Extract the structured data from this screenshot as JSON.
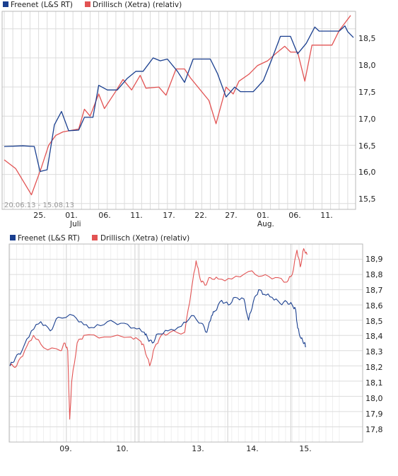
{
  "colors": {
    "series_a": "#1a3f8f",
    "series_b": "#e25353",
    "grid": "#dcdcdc",
    "frame": "#b8b8b8",
    "tick_text": "#222222",
    "range_text": "#9a9a9a"
  },
  "chart_data": [
    {
      "type": "line",
      "legend_position": "top-left",
      "legend": [
        "Freenet (L&S RT)",
        "Drillisch (Xetra) (relativ)"
      ],
      "date_range_label": "20.06.13 - 15.08.13",
      "x_ticks": [
        "25.",
        "01.",
        "06.",
        "11.",
        "17.",
        "22.",
        "27.",
        "01.",
        "06.",
        "11."
      ],
      "x_month_labels": [
        {
          "label": "Juli",
          "tick": "01."
        },
        {
          "label": "Aug.",
          "tick": "01."
        }
      ],
      "y_axis_side": "right",
      "y_ticks": [
        "15,5",
        "16,0",
        "16,5",
        "17,0",
        "17,5",
        "18,0",
        "18,5"
      ],
      "ylim": [
        15.4,
        18.8
      ],
      "grid": true,
      "series": [
        {
          "name": "Freenet (L&S RT)",
          "values": [
            [
              0,
              16.48
            ],
            [
              1.3,
              16.49
            ],
            [
              2.1,
              16.48
            ],
            [
              2.5,
              16.05
            ],
            [
              3.0,
              16.08
            ],
            [
              3.5,
              16.85
            ],
            [
              4.0,
              17.08
            ],
            [
              4.5,
              16.75
            ],
            [
              5.2,
              16.76
            ],
            [
              5.6,
              16.98
            ],
            [
              6.2,
              16.98
            ],
            [
              6.6,
              17.53
            ],
            [
              7.2,
              17.45
            ],
            [
              7.9,
              17.45
            ],
            [
              8.6,
              17.65
            ],
            [
              9.2,
              17.77
            ],
            [
              9.7,
              17.77
            ],
            [
              10.4,
              18.0
            ],
            [
              10.9,
              17.95
            ],
            [
              11.4,
              17.98
            ],
            [
              12.1,
              17.77
            ],
            [
              12.6,
              17.58
            ],
            [
              13.2,
              17.98
            ],
            [
              14.4,
              17.98
            ],
            [
              14.9,
              17.73
            ],
            [
              15.5,
              17.33
            ],
            [
              16.1,
              17.5
            ],
            [
              16.5,
              17.42
            ],
            [
              17.4,
              17.42
            ],
            [
              18.1,
              17.61
            ],
            [
              18.7,
              17.98
            ],
            [
              19.3,
              18.37
            ],
            [
              20.0,
              18.37
            ],
            [
              20.5,
              18.07
            ],
            [
              21.1,
              18.25
            ],
            [
              21.7,
              18.53
            ],
            [
              22.0,
              18.46
            ],
            [
              23.4,
              18.46
            ],
            [
              23.8,
              18.55
            ],
            [
              24.0,
              18.45
            ],
            [
              24.4,
              18.35
            ]
          ]
        },
        {
          "name": "Drillisch (Xetra) (relativ)",
          "values": [
            [
              0,
              16.25
            ],
            [
              0.8,
              16.1
            ],
            [
              1.9,
              15.65
            ],
            [
              2.6,
              16.12
            ],
            [
              3.1,
              16.5
            ],
            [
              3.6,
              16.67
            ],
            [
              4.1,
              16.73
            ],
            [
              5.2,
              16.78
            ],
            [
              5.6,
              17.12
            ],
            [
              6.0,
              17.0
            ],
            [
              6.6,
              17.38
            ],
            [
              7.0,
              17.13
            ],
            [
              7.8,
              17.43
            ],
            [
              8.3,
              17.63
            ],
            [
              8.9,
              17.45
            ],
            [
              9.5,
              17.7
            ],
            [
              9.9,
              17.48
            ],
            [
              10.8,
              17.5
            ],
            [
              11.3,
              17.36
            ],
            [
              12.0,
              17.81
            ],
            [
              12.6,
              17.81
            ],
            [
              13.0,
              17.66
            ],
            [
              14.3,
              17.27
            ],
            [
              14.8,
              16.87
            ],
            [
              15.5,
              17.5
            ],
            [
              16.0,
              17.38
            ],
            [
              16.4,
              17.6
            ],
            [
              17.1,
              17.72
            ],
            [
              17.7,
              17.87
            ],
            [
              18.4,
              17.95
            ],
            [
              19.0,
              18.08
            ],
            [
              19.6,
              18.2
            ],
            [
              20.0,
              18.1
            ],
            [
              20.5,
              18.1
            ],
            [
              21.0,
              17.6
            ],
            [
              21.5,
              18.22
            ],
            [
              22.9,
              18.22
            ],
            [
              23.4,
              18.47
            ],
            [
              23.8,
              18.6
            ],
            [
              24.2,
              18.73
            ]
          ]
        }
      ]
    },
    {
      "type": "line",
      "legend_position": "top-left",
      "legend": [
        "Freenet (L&S RT)",
        "Drillisch (Xetra) (relativ)"
      ],
      "x_ticks": [
        "09.",
        "10.",
        "13.",
        "14.",
        "15."
      ],
      "y_axis_side": "right",
      "y_ticks": [
        "17,8",
        "17,9",
        "18,0",
        "18,1",
        "18,2",
        "18,3",
        "18,4",
        "18,5",
        "18,6",
        "18,7",
        "18,8",
        "18,9"
      ],
      "ylim": [
        17.7,
        19.0
      ],
      "grid": true,
      "series": [
        {
          "name": "Freenet (L&S RT)",
          "values": [
            [
              0.0,
              18.2
            ],
            [
              0.08,
              18.25
            ],
            [
              0.18,
              18.3
            ],
            [
              0.32,
              18.43
            ],
            [
              0.46,
              18.49
            ],
            [
              0.6,
              18.43
            ],
            [
              0.72,
              18.52
            ],
            [
              0.95,
              18.53
            ],
            [
              1.1,
              18.47
            ],
            [
              1.25,
              18.45
            ],
            [
              1.45,
              18.49
            ],
            [
              1.65,
              18.48
            ],
            [
              1.85,
              18.45
            ],
            [
              2.0,
              18.42
            ],
            [
              2.05,
              18.38
            ],
            [
              2.12,
              18.35
            ],
            [
              2.2,
              18.41
            ],
            [
              2.35,
              18.43
            ],
            [
              2.55,
              18.46
            ],
            [
              2.7,
              18.53
            ],
            [
              2.85,
              18.48
            ],
            [
              2.93,
              18.42
            ],
            [
              3.0,
              18.53
            ],
            [
              3.05,
              18.56
            ],
            [
              3.15,
              18.63
            ],
            [
              3.25,
              18.6
            ],
            [
              3.35,
              18.65
            ],
            [
              3.48,
              18.64
            ],
            [
              3.55,
              18.5
            ],
            [
              3.62,
              18.62
            ],
            [
              3.7,
              18.7
            ],
            [
              3.78,
              18.67
            ],
            [
              3.9,
              18.65
            ],
            [
              4.02,
              18.61
            ],
            [
              4.12,
              18.62
            ],
            [
              4.2,
              18.6
            ],
            [
              4.25,
              18.57
            ],
            [
              4.28,
              18.45
            ],
            [
              4.33,
              18.38
            ],
            [
              4.38,
              18.35
            ],
            [
              4.4,
              18.33
            ]
          ]
        },
        {
          "name": "Drillisch (Xetra) (relativ)",
          "values": [
            [
              0.0,
              18.2
            ],
            [
              0.1,
              18.2
            ],
            [
              0.22,
              18.3
            ],
            [
              0.35,
              18.4
            ],
            [
              0.5,
              18.32
            ],
            [
              0.75,
              18.3
            ],
            [
              0.82,
              18.35
            ],
            [
              0.86,
              18.3
            ],
            [
              0.89,
              17.85
            ],
            [
              0.92,
              18.1
            ],
            [
              1.0,
              18.35
            ],
            [
              1.1,
              18.4
            ],
            [
              1.4,
              18.39
            ],
            [
              1.8,
              18.39
            ],
            [
              1.95,
              18.36
            ],
            [
              2.0,
              18.32
            ],
            [
              2.08,
              18.2
            ],
            [
              2.15,
              18.32
            ],
            [
              2.25,
              18.4
            ],
            [
              2.38,
              18.42
            ],
            [
              2.6,
              18.42
            ],
            [
              2.7,
              18.7
            ],
            [
              2.77,
              18.89
            ],
            [
              2.83,
              18.77
            ],
            [
              2.9,
              18.73
            ],
            [
              2.98,
              18.78
            ],
            [
              3.1,
              18.77
            ],
            [
              3.3,
              18.77
            ],
            [
              3.55,
              18.82
            ],
            [
              3.75,
              18.79
            ],
            [
              3.95,
              18.78
            ],
            [
              4.12,
              18.75
            ],
            [
              4.2,
              18.8
            ],
            [
              4.27,
              18.96
            ],
            [
              4.32,
              18.85
            ],
            [
              4.37,
              18.97
            ],
            [
              4.42,
              18.93
            ]
          ]
        }
      ]
    }
  ]
}
